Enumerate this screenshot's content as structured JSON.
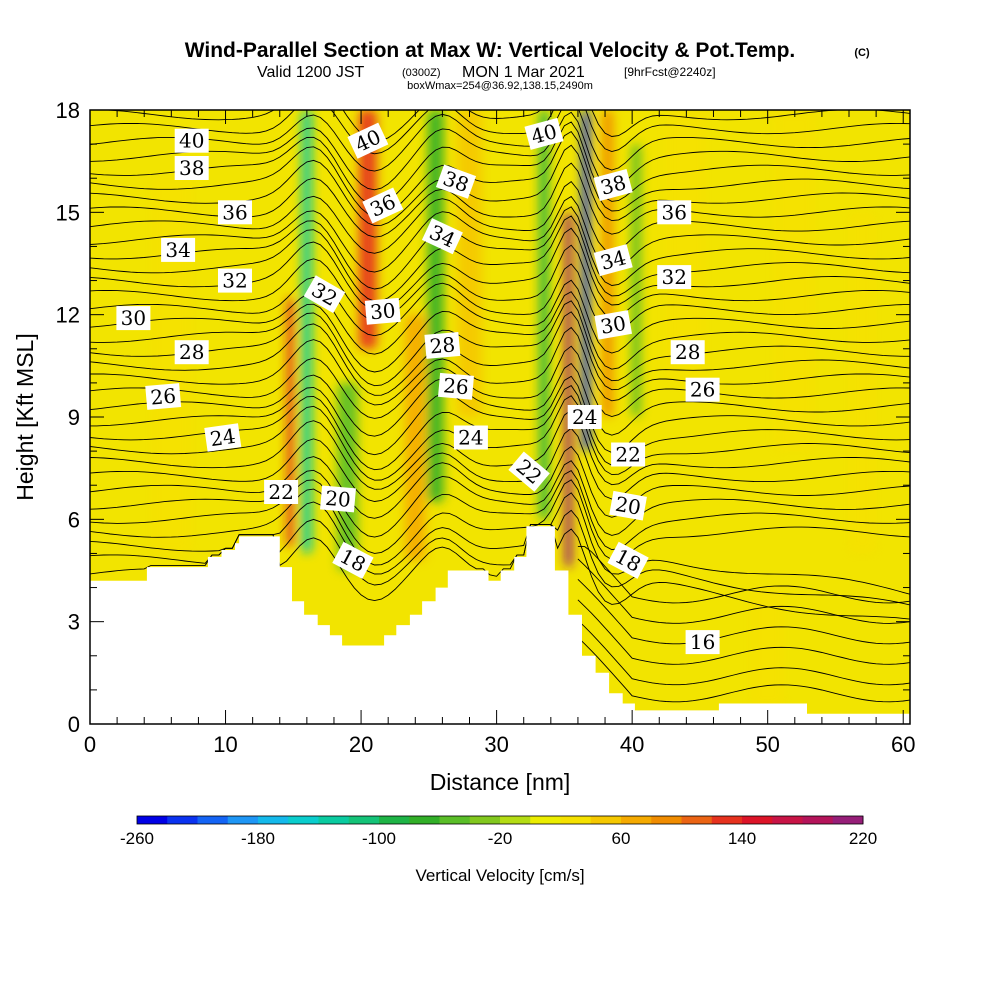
{
  "title": {
    "main": "Wind-Parallel Section at Max W: Vertical Velocity & Pot.Temp.",
    "copyright": "(C)",
    "valid_prefix": "Valid 1200 JST",
    "valid_utc": "(0300Z)",
    "valid_date": "MON 1 Mar 2021",
    "forecast": "[9hrFcst@2240z]",
    "box": "boxWmax=254@36.92,138.15,2490m"
  },
  "colors": {
    "background": "#ffffff",
    "terrain": "#ffffff",
    "contour": "#000000",
    "base_fill": "#f2e400"
  },
  "chart_data": {
    "type": "heatmap",
    "xlabel": "Distance [nm]",
    "ylabel": "Height [Kft MSL]",
    "xlim": [
      0,
      60.5
    ],
    "ylim": [
      0,
      18
    ],
    "xticks": [
      0,
      10,
      20,
      30,
      40,
      50,
      60
    ],
    "yticks": [
      0,
      3,
      6,
      9,
      12,
      15,
      18
    ],
    "colorbar": {
      "label": "Vertical Velocity [cm/s]",
      "tick_labels": [
        "-260",
        "-180",
        "-100",
        "-20",
        "60",
        "140",
        "220"
      ],
      "tick_values": [
        -260,
        -180,
        -100,
        -20,
        60,
        140,
        220
      ],
      "bins": [
        -260,
        -240,
        -220,
        -200,
        -180,
        -160,
        -140,
        -120,
        -100,
        -80,
        -60,
        -40,
        -20,
        0,
        20,
        40,
        60,
        80,
        100,
        120,
        140,
        160,
        180,
        200,
        220
      ],
      "bin_colors": [
        "#0000e6",
        "#0a32f0",
        "#1464f5",
        "#1e96f5",
        "#14b9eb",
        "#0acdcd",
        "#0acba0",
        "#14c378",
        "#1eb446",
        "#32af28",
        "#5abe28",
        "#82c81e",
        "#b4dc14",
        "#ebed00",
        "#f5e100",
        "#f5c800",
        "#f5aa00",
        "#f08c00",
        "#eb6414",
        "#e6321e",
        "#dc1428",
        "#c81446",
        "#b4145a",
        "#961e78"
      ]
    },
    "terrain_profile": [
      [
        0,
        4.2
      ],
      [
        4.2,
        4.2
      ],
      [
        4.2,
        4.6
      ],
      [
        8.7,
        4.6
      ],
      [
        8.7,
        4.9
      ],
      [
        9.7,
        4.9
      ],
      [
        9.7,
        5.1
      ],
      [
        10.7,
        5.1
      ],
      [
        10.7,
        5.3
      ],
      [
        11.0,
        5.3
      ],
      [
        11.0,
        5.5
      ],
      [
        14.0,
        5.5
      ],
      [
        14.0,
        4.6
      ],
      [
        14.9,
        4.6
      ],
      [
        14.9,
        3.6
      ],
      [
        15.8,
        3.6
      ],
      [
        15.8,
        3.2
      ],
      [
        16.8,
        3.2
      ],
      [
        16.8,
        2.9
      ],
      [
        17.7,
        2.9
      ],
      [
        17.7,
        2.6
      ],
      [
        18.6,
        2.6
      ],
      [
        18.6,
        2.3
      ],
      [
        21.7,
        2.3
      ],
      [
        21.7,
        2.6
      ],
      [
        22.6,
        2.6
      ],
      [
        22.6,
        2.9
      ],
      [
        23.6,
        2.9
      ],
      [
        23.6,
        3.2
      ],
      [
        24.5,
        3.2
      ],
      [
        24.5,
        3.6
      ],
      [
        25.5,
        3.6
      ],
      [
        25.5,
        4.0
      ],
      [
        26.4,
        4.0
      ],
      [
        26.4,
        4.5
      ],
      [
        29.4,
        4.5
      ],
      [
        29.4,
        4.2
      ],
      [
        30.3,
        4.2
      ],
      [
        30.3,
        4.5
      ],
      [
        31.3,
        4.5
      ],
      [
        31.3,
        4.9
      ],
      [
        32.2,
        4.9
      ],
      [
        32.2,
        5.8
      ],
      [
        34.3,
        5.8
      ],
      [
        34.3,
        4.5
      ],
      [
        35.3,
        4.5
      ],
      [
        35.3,
        3.2
      ],
      [
        36.3,
        3.2
      ],
      [
        36.3,
        2.0
      ],
      [
        37.3,
        2.0
      ],
      [
        37.3,
        1.5
      ],
      [
        38.3,
        1.5
      ],
      [
        38.3,
        0.9
      ],
      [
        39.3,
        0.9
      ],
      [
        39.3,
        0.6
      ],
      [
        40.2,
        0.6
      ],
      [
        40.2,
        0.4
      ],
      [
        46.4,
        0.4
      ],
      [
        46.4,
        0.6
      ],
      [
        52.9,
        0.6
      ],
      [
        52.9,
        0.3
      ],
      [
        60.5,
        0.3
      ]
    ],
    "field_features": [
      {
        "x": 16.0,
        "y0": 5.0,
        "y1": 18,
        "value": -130,
        "width": 0.8
      },
      {
        "x": 14.8,
        "y0": 5.2,
        "y1": 12.5,
        "value": 150,
        "width": 0.5
      },
      {
        "x": 20.5,
        "y0": 11.0,
        "y1": 18,
        "value": 120,
        "width": 1.3
      },
      {
        "x": 19.0,
        "y0": 4.5,
        "y1": 10.0,
        "value": -60,
        "width": 1.5
      },
      {
        "x": 25.5,
        "y0": 6.5,
        "y1": 18,
        "value": -70,
        "width": 1.2
      },
      {
        "x": 24.0,
        "y0": 4.8,
        "y1": 12.0,
        "value": 60,
        "width": 1.5
      },
      {
        "x": 33.5,
        "y0": 6.0,
        "y1": 18,
        "value": -90,
        "width": 0.7
      },
      {
        "x": 35.3,
        "y0": 4.6,
        "y1": 15.0,
        "value": 200,
        "width": 0.6
      },
      {
        "x": 36.6,
        "y0": 8.0,
        "y1": 18,
        "value": -230,
        "width": 0.6
      },
      {
        "x": 38.2,
        "y0": 9.0,
        "y1": 18,
        "value": 80,
        "width": 0.8
      },
      {
        "x": 40.3,
        "y0": 9.0,
        "y1": 17.0,
        "value": -60,
        "width": 0.7
      },
      {
        "x": 6.0,
        "y0": 5.0,
        "y1": 16.0,
        "value": 30,
        "width": 3.0
      },
      {
        "x": 28.0,
        "y0": 9.0,
        "y1": 18.0,
        "value": 40,
        "width": 1.8
      },
      {
        "x": 44.0,
        "y0": 10.0,
        "y1": 18.0,
        "value": 25,
        "width": 3.0
      },
      {
        "x": 52.0,
        "y0": 8.0,
        "y1": 18.0,
        "value": 25,
        "width": 3.0
      },
      {
        "x": 57.0,
        "y0": 5.0,
        "y1": 15.0,
        "value": 30,
        "width": 2.0
      },
      {
        "x": 50.0,
        "y0": 0.5,
        "y1": 4.0,
        "value": 25,
        "width": 2.5
      }
    ],
    "theta_contour_labels": [
      {
        "text": "40",
        "x": 7.5,
        "y": 17.1,
        "rot": 0
      },
      {
        "text": "38",
        "x": 7.5,
        "y": 16.3,
        "rot": 0
      },
      {
        "text": "36",
        "x": 10.7,
        "y": 15.0,
        "rot": 0
      },
      {
        "text": "34",
        "x": 6.5,
        "y": 13.9,
        "rot": 0
      },
      {
        "text": "32",
        "x": 10.7,
        "y": 13.0,
        "rot": 0
      },
      {
        "text": "30",
        "x": 3.2,
        "y": 11.9,
        "rot": 0
      },
      {
        "text": "28",
        "x": 7.5,
        "y": 10.9,
        "rot": 0
      },
      {
        "text": "26",
        "x": 5.4,
        "y": 9.6,
        "rot": -5
      },
      {
        "text": "24",
        "x": 9.8,
        "y": 8.4,
        "rot": -8
      },
      {
        "text": "22",
        "x": 14.1,
        "y": 6.8,
        "rot": 0
      },
      {
        "text": "40",
        "x": 20.5,
        "y": 17.1,
        "rot": -25
      },
      {
        "text": "36",
        "x": 21.6,
        "y": 15.2,
        "rot": -25
      },
      {
        "text": "32",
        "x": 17.3,
        "y": 12.6,
        "rot": 30
      },
      {
        "text": "30",
        "x": 21.6,
        "y": 12.1,
        "rot": -5
      },
      {
        "text": "20",
        "x": 18.3,
        "y": 6.6,
        "rot": 5
      },
      {
        "text": "18",
        "x": 19.4,
        "y": 4.8,
        "rot": 28
      },
      {
        "text": "38",
        "x": 27.0,
        "y": 15.9,
        "rot": 20
      },
      {
        "text": "34",
        "x": 26.0,
        "y": 14.3,
        "rot": 25
      },
      {
        "text": "28",
        "x": 26.0,
        "y": 11.1,
        "rot": -5
      },
      {
        "text": "26",
        "x": 27.0,
        "y": 9.9,
        "rot": 5
      },
      {
        "text": "24",
        "x": 28.1,
        "y": 8.4,
        "rot": 0
      },
      {
        "text": "40",
        "x": 33.5,
        "y": 17.3,
        "rot": -15
      },
      {
        "text": "22",
        "x": 32.4,
        "y": 7.4,
        "rot": 40
      },
      {
        "text": "24",
        "x": 36.5,
        "y": 9.0,
        "rot": 0
      },
      {
        "text": "38",
        "x": 38.6,
        "y": 15.8,
        "rot": -15
      },
      {
        "text": "34",
        "x": 38.6,
        "y": 13.6,
        "rot": -15
      },
      {
        "text": "30",
        "x": 38.6,
        "y": 11.7,
        "rot": -10
      },
      {
        "text": "22",
        "x": 39.7,
        "y": 7.9,
        "rot": 0
      },
      {
        "text": "20",
        "x": 39.7,
        "y": 6.4,
        "rot": 10
      },
      {
        "text": "18",
        "x": 39.7,
        "y": 4.8,
        "rot": 28
      },
      {
        "text": "36",
        "x": 43.1,
        "y": 15.0,
        "rot": 0
      },
      {
        "text": "32",
        "x": 43.1,
        "y": 13.1,
        "rot": 0
      },
      {
        "text": "28",
        "x": 44.1,
        "y": 10.9,
        "rot": 0
      },
      {
        "text": "26",
        "x": 45.2,
        "y": 9.8,
        "rot": 0
      },
      {
        "text": "16",
        "x": 45.2,
        "y": 2.4,
        "rot": 0
      }
    ]
  }
}
